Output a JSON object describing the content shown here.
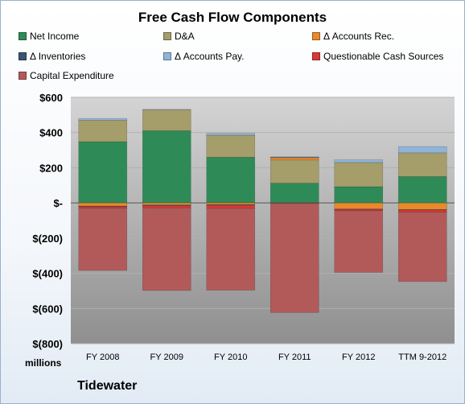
{
  "chart_data": {
    "type": "bar",
    "stacked": true,
    "title": "Free Cash Flow Components",
    "units_label": "millions",
    "footer_label": "Tidewater",
    "categories": [
      "FY 2008",
      "FY 2009",
      "FY 2010",
      "FY 2011",
      "FY 2012",
      "TTM 9-2012"
    ],
    "ylim": [
      -800,
      600
    ],
    "yticks": [
      600,
      400,
      200,
      0,
      -200,
      -400,
      -600,
      -800
    ],
    "ytick_labels": [
      "$600",
      "$400",
      "$200",
      "$-",
      "$(200)",
      "$(400)",
      "$(600)",
      "$(800)"
    ],
    "grid": true,
    "legend_position": "top",
    "series": [
      {
        "name": "Net Income",
        "color": "#2e8b57",
        "values": [
          348,
          410,
          260,
          112,
          92,
          150
        ]
      },
      {
        "name": "D&A",
        "color": "#a59d6a",
        "values": [
          122,
          120,
          125,
          132,
          138,
          135
        ]
      },
      {
        "name": "Δ Accounts Rec.",
        "color": "#e8892b",
        "values": [
          -18,
          -12,
          -10,
          15,
          -35,
          -38
        ]
      },
      {
        "name": "Δ Inventories",
        "color": "#3a5473",
        "values": [
          -3,
          -4,
          -3,
          0,
          -2,
          -2
        ]
      },
      {
        "name": "Δ Accounts Pay.",
        "color": "#8fb4d9",
        "values": [
          10,
          2,
          10,
          3,
          15,
          35
        ]
      },
      {
        "name": "Questionable Cash Sources",
        "color": "#d83a3a",
        "values": [
          -8,
          -12,
          -18,
          -3,
          -8,
          -12
        ]
      },
      {
        "name": "Capital Expenditure",
        "color": "#b25a5a",
        "values": [
          -355,
          -470,
          -465,
          -620,
          -350,
          -395
        ]
      }
    ]
  }
}
